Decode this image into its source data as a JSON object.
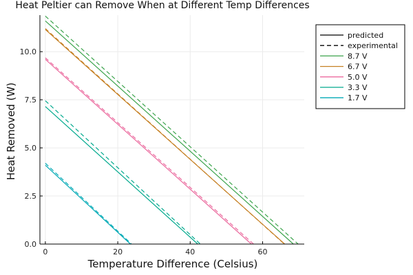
{
  "chart_data": {
    "type": "line",
    "title": "Heat Peltier can Remove When at Different Temp Differences",
    "xlabel": "Temperature Difference (Celsius)",
    "ylabel": "Heat Removed (W)",
    "xlim": [
      -1.5,
      71.5
    ],
    "ylim": [
      0,
      11.9
    ],
    "xticks": [
      0,
      20,
      40,
      60
    ],
    "xtick_labels": [
      "0",
      "20",
      "40",
      "60"
    ],
    "yticks": [
      0,
      2.5,
      5.0,
      7.5,
      10.0
    ],
    "ytick_labels": [
      "0.0",
      "2.5",
      "5.0",
      "7.5",
      "10.0"
    ],
    "grid": true,
    "legend_position": "outside-right-top",
    "legend_style_entries": [
      {
        "label": "predicted",
        "color": "#000000",
        "dash": false
      },
      {
        "label": "experimental",
        "color": "#000000",
        "dash": true
      }
    ],
    "series": [
      {
        "name": "8.7 V",
        "color": "#3da44d",
        "predicted": {
          "x": [
            0,
            68.5
          ],
          "y": [
            11.6,
            0
          ]
        },
        "experimental": {
          "x": [
            0,
            69.8
          ],
          "y": [
            11.85,
            0
          ]
        }
      },
      {
        "name": "6.7 V",
        "color": "#c68125",
        "predicted": {
          "x": [
            0,
            66.1
          ],
          "y": [
            11.15,
            0
          ]
        },
        "experimental": {
          "x": [
            0,
            66.0
          ],
          "y": [
            11.2,
            0
          ]
        }
      },
      {
        "name": "5.0 V",
        "color": "#eb6a9e",
        "predicted": {
          "x": [
            0,
            56.9
          ],
          "y": [
            9.6,
            0
          ]
        },
        "experimental": {
          "x": [
            0,
            57.5
          ],
          "y": [
            9.68,
            0
          ]
        }
      },
      {
        "name": "3.3 V",
        "color": "#00a98d",
        "predicted": {
          "x": [
            0,
            42.1
          ],
          "y": [
            7.15,
            0
          ]
        },
        "experimental": {
          "x": [
            0,
            42.8
          ],
          "y": [
            7.45,
            0
          ]
        }
      },
      {
        "name": "1.7 V",
        "color": "#00a9b5",
        "predicted": {
          "x": [
            0,
            23.5
          ],
          "y": [
            4.1,
            0
          ]
        },
        "experimental": {
          "x": [
            0,
            23.8
          ],
          "y": [
            4.2,
            0
          ]
        }
      }
    ]
  }
}
